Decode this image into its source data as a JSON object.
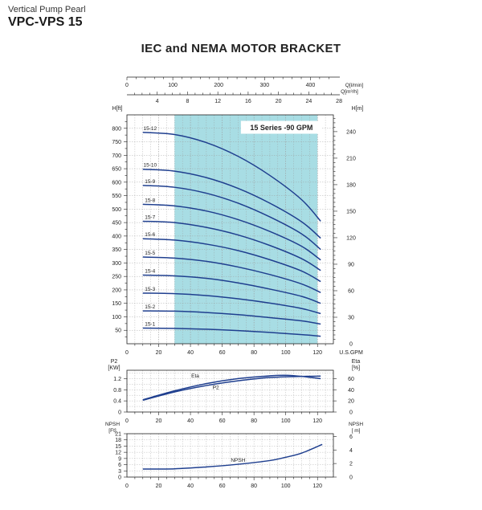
{
  "header": {
    "subtitle": "Vertical Pump Pearl",
    "model": "VPC-VPS 15",
    "title": "IEC and NEMA MOTOR BRACKET"
  },
  "colors": {
    "curve": "#1f3f8f",
    "band": "#a8dde4",
    "grid": "#9a9a9a",
    "frame": "#222222"
  },
  "chart_data": [
    {
      "type": "line",
      "panel": "head",
      "annotation": "15 Series -90 GPM",
      "top_axis_1": {
        "label": "Q[l/min]",
        "ticks": [
          0,
          100,
          200,
          300,
          400
        ],
        "range": [
          0,
          450
        ]
      },
      "top_axis_2": {
        "label": "Q[m³/h]",
        "ticks": [
          4,
          8,
          12,
          16,
          20,
          24,
          28
        ],
        "range": [
          0,
          27.25
        ]
      },
      "xlabel": "U.S.GPM",
      "xlim": [
        0,
        130
      ],
      "xticks": [
        0,
        20,
        40,
        60,
        80,
        100,
        120
      ],
      "left_axis": {
        "label": "H[ft]",
        "range": [
          0,
          850
        ],
        "ticks": [
          50,
          100,
          150,
          200,
          250,
          300,
          350,
          400,
          450,
          500,
          550,
          600,
          650,
          700,
          750,
          800
        ]
      },
      "right_axis": {
        "label": "H[m]",
        "range": [
          0,
          259
        ],
        "ticks": [
          0,
          30,
          60,
          90,
          120,
          150,
          180,
          210,
          240
        ]
      },
      "recommended_range": [
        30,
        120
      ],
      "series": [
        {
          "name": "15-1",
          "x": [
            10,
            30,
            50,
            70,
            90,
            110,
            122
          ],
          "y": [
            58,
            57,
            54,
            49,
            42,
            34,
            28
          ]
        },
        {
          "name": "15-2",
          "x": [
            10,
            30,
            50,
            70,
            90,
            110,
            122
          ],
          "y": [
            122,
            121,
            116,
            108,
            97,
            85,
            73
          ]
        },
        {
          "name": "15-3",
          "x": [
            10,
            30,
            50,
            70,
            90,
            110,
            122
          ],
          "y": [
            188,
            186,
            179,
            167,
            151,
            131,
            112
          ]
        },
        {
          "name": "15-4",
          "x": [
            10,
            30,
            50,
            70,
            90,
            110,
            122
          ],
          "y": [
            255,
            252,
            243,
            226,
            203,
            176,
            150
          ]
        },
        {
          "name": "15-5",
          "x": [
            10,
            30,
            50,
            70,
            90,
            110,
            122
          ],
          "y": [
            322,
            318,
            306,
            285,
            257,
            222,
            190
          ]
        },
        {
          "name": "15-6",
          "x": [
            10,
            30,
            50,
            70,
            90,
            110,
            122
          ],
          "y": [
            390,
            385,
            370,
            346,
            312,
            270,
            231
          ]
        },
        {
          "name": "15-7",
          "x": [
            10,
            30,
            50,
            70,
            90,
            110,
            122
          ],
          "y": [
            455,
            450,
            432,
            404,
            365,
            316,
            272
          ]
        },
        {
          "name": "15-8",
          "x": [
            10,
            30,
            50,
            70,
            90,
            110,
            122
          ],
          "y": [
            518,
            512,
            493,
            461,
            417,
            362,
            311
          ]
        },
        {
          "name": "15-9",
          "x": [
            10,
            30,
            50,
            70,
            90,
            110,
            122
          ],
          "y": [
            588,
            581,
            559,
            522,
            471,
            408,
            350
          ]
        },
        {
          "name": "15-10",
          "x": [
            10,
            30,
            50,
            70,
            90,
            110,
            122
          ],
          "y": [
            648,
            641,
            617,
            577,
            522,
            453,
            392
          ]
        },
        {
          "name": "15-12",
          "x": [
            10,
            30,
            50,
            70,
            90,
            110,
            122
          ],
          "y": [
            785,
            777,
            747,
            696,
            625,
            535,
            455
          ]
        }
      ]
    },
    {
      "type": "line",
      "panel": "power-efficiency",
      "left_axis": {
        "label": "P2",
        "unit": "[KW]",
        "range": [
          0,
          1.5
        ],
        "ticks": [
          0,
          0.4,
          0.8,
          1.2
        ]
      },
      "right_axis": {
        "label": "Eta",
        "unit": "[%]",
        "range": [
          0,
          75
        ],
        "ticks": [
          0,
          20,
          40,
          60
        ]
      },
      "xlim": [
        0,
        130
      ],
      "series": [
        {
          "name": "Eta",
          "axis": "right",
          "x": [
            10,
            30,
            50,
            70,
            90,
            100,
            110,
            122
          ],
          "y": [
            22,
            38,
            51,
            60,
            65,
            66,
            64,
            60
          ]
        },
        {
          "name": "P2",
          "axis": "left",
          "x": [
            10,
            30,
            50,
            70,
            90,
            110,
            122
          ],
          "y": [
            0.42,
            0.72,
            0.95,
            1.12,
            1.24,
            1.28,
            1.29
          ]
        }
      ]
    },
    {
      "type": "line",
      "panel": "npsh",
      "left_axis": {
        "label": "NPSH",
        "unit": "[Ft]",
        "range": [
          0,
          21
        ],
        "ticks": [
          0,
          3,
          6,
          9,
          12,
          15,
          18,
          21
        ]
      },
      "right_axis": {
        "label": "NPSH",
        "unit": "[ m]",
        "range": [
          0,
          6.4
        ],
        "ticks": [
          0,
          2,
          4,
          6
        ]
      },
      "xlim": [
        0,
        130
      ],
      "series": [
        {
          "name": "NPSH",
          "axis": "left",
          "x": [
            10,
            30,
            50,
            70,
            90,
            100,
            110,
            123
          ],
          "y": [
            3.9,
            4.0,
            4.9,
            6.2,
            8.0,
            9.6,
            11.6,
            15.8
          ]
        }
      ]
    }
  ]
}
